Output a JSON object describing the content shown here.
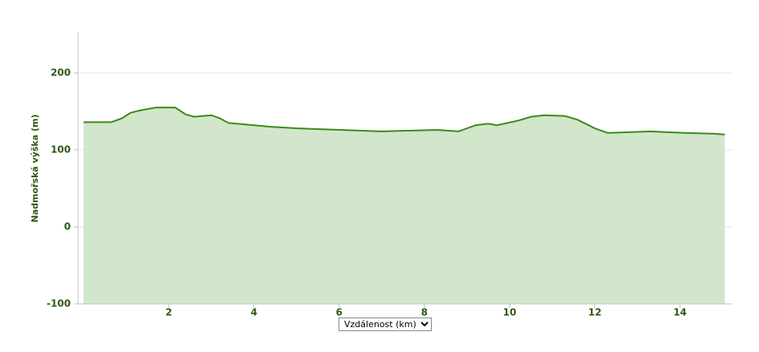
{
  "chart_data": {
    "type": "area",
    "y_label": "Nadmořská výška (m)",
    "x_label": "Vzdálenost (km)",
    "x": [
      0,
      0.65,
      0.9,
      1.1,
      1.3,
      1.5,
      1.7,
      2.0,
      2.15,
      2.4,
      2.6,
      3.0,
      3.2,
      3.4,
      3.6,
      4.4,
      5.0,
      5.5,
      7.0,
      8.3,
      8.8,
      9.2,
      9.5,
      9.7,
      10.2,
      10.5,
      10.8,
      11.3,
      11.6,
      12.0,
      12.3,
      13.3,
      14.1,
      14.8,
      15.05
    ],
    "values": [
      136,
      136,
      141,
      148,
      151,
      153,
      155,
      155,
      155,
      146,
      143,
      145,
      141,
      135,
      134,
      130,
      128,
      127,
      124,
      126,
      124,
      132,
      134,
      132,
      138,
      143,
      145,
      144,
      139,
      128,
      122,
      124,
      122,
      121,
      120
    ],
    "color": "#3b8a1b",
    "fill": "#d2e6cb",
    "xlim": [
      -0.13,
      15.23
    ],
    "xticks": [
      2,
      4,
      6,
      8,
      10,
      12,
      14
    ],
    "ylim": [
      -100,
      253
    ],
    "yticks": [
      -100,
      0,
      100,
      200
    ],
    "grid": true
  }
}
